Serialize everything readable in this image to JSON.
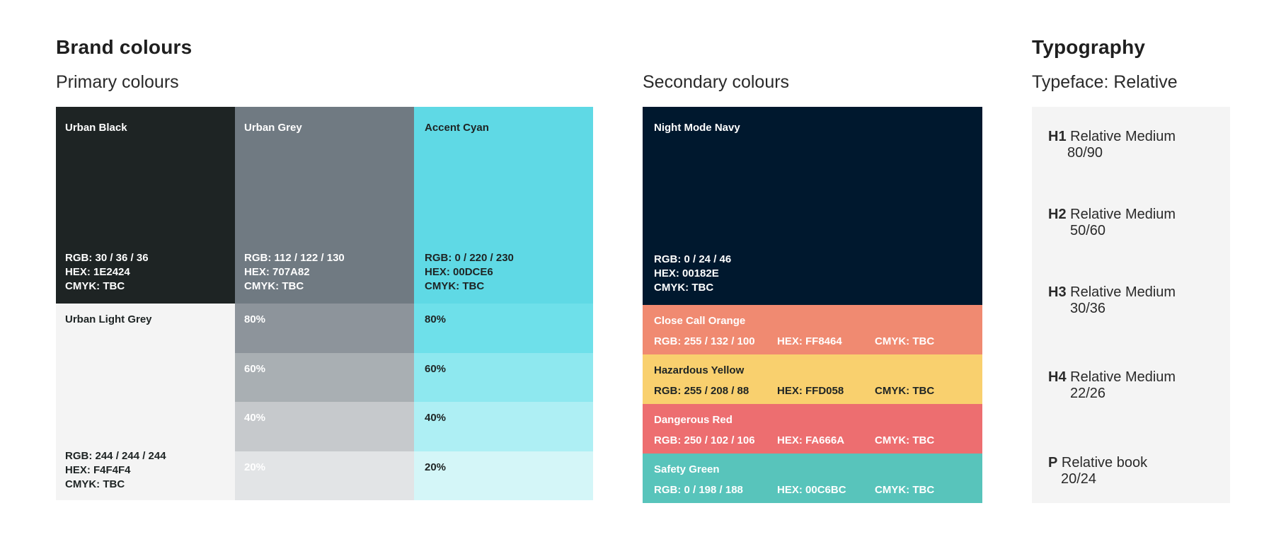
{
  "brand_title": "Brand colours",
  "primary_title": "Primary colours",
  "secondary_title": "Secondary colours",
  "typography_title": "Typography",
  "typeface_title": "Typeface: Relative",
  "primary": {
    "urban_black": {
      "name": "Urban Black",
      "rgb": "RGB: 30 / 36 / 36",
      "hex": "HEX: 1E2424",
      "cmyk": "CMYK: TBC",
      "color": "#1E2424"
    },
    "urban_grey": {
      "name": "Urban Grey",
      "rgb": "RGB: 112 / 122 / 130",
      "hex": "HEX: 707A82",
      "cmyk": "CMYK: TBC",
      "color": "#707A82"
    },
    "accent_cyan": {
      "name": "Accent Cyan",
      "rgb": "RGB: 0 / 220 / 230",
      "hex": "HEX: 00DCE6",
      "cmyk": "CMYK: TBC",
      "color": "#5FD9E5"
    },
    "urban_light_grey": {
      "name": "Urban Light Grey",
      "rgb": "RGB: 244 / 244 / 244",
      "hex": "HEX: F4F4F4",
      "cmyk": "CMYK: TBC",
      "color": "#F4F4F4"
    },
    "grey_tints": [
      {
        "label": "80%",
        "color": "#8D949B"
      },
      {
        "label": "60%",
        "color": "#A9AFB3"
      },
      {
        "label": "40%",
        "color": "#C6C9CC"
      },
      {
        "label": "20%",
        "color": "#E2E4E6"
      }
    ],
    "cyan_tints": [
      {
        "label": "80%",
        "color": "#6EE0EA"
      },
      {
        "label": "60%",
        "color": "#8EE8EF"
      },
      {
        "label": "40%",
        "color": "#AEEFF4"
      },
      {
        "label": "20%",
        "color": "#D4F6F8"
      }
    ]
  },
  "secondary": {
    "night_navy": {
      "name": "Night Mode Navy",
      "rgb": "RGB: 0 / 24 / 46",
      "hex": "HEX: 00182E",
      "cmyk": "CMYK: TBC",
      "color": "#00182E"
    },
    "strips": [
      {
        "name": "Close Call Orange",
        "rgb": "RGB: 255 / 132 / 100",
        "hex": "HEX: FF8464",
        "cmyk": "CMYK: TBC",
        "color": "#F08A71",
        "text": "#ffffff"
      },
      {
        "name": "Hazardous Yellow",
        "rgb": "RGB: 255 / 208 / 88",
        "hex": "HEX: FFD058",
        "cmyk": "CMYK: TBC",
        "color": "#F9D06E",
        "text": "#2a2a2a"
      },
      {
        "name": "Dangerous Red",
        "rgb": "RGB: 250 / 102 / 106",
        "hex": "HEX: FA666A",
        "cmyk": "CMYK: TBC",
        "color": "#ED6E70",
        "text": "#ffffff"
      },
      {
        "name": "Safety Green",
        "rgb": "RGB: 0 / 198 / 188",
        "hex": "HEX: 00C6BC",
        "cmyk": "CMYK: TBC",
        "color": "#58C4BB",
        "text": "#ffffff"
      }
    ]
  },
  "typography": [
    {
      "tag": "H1",
      "name": "Relative Medium",
      "size": "80/90"
    },
    {
      "tag": "H2",
      "name": "Relative Medium",
      "size": "50/60"
    },
    {
      "tag": "H3",
      "name": "Relative Medium",
      "size": "30/36"
    },
    {
      "tag": "H4",
      "name": "Relative Medium",
      "size": "22/26"
    },
    {
      "tag": "P",
      "name": "Relative book",
      "size": "20/24"
    }
  ]
}
